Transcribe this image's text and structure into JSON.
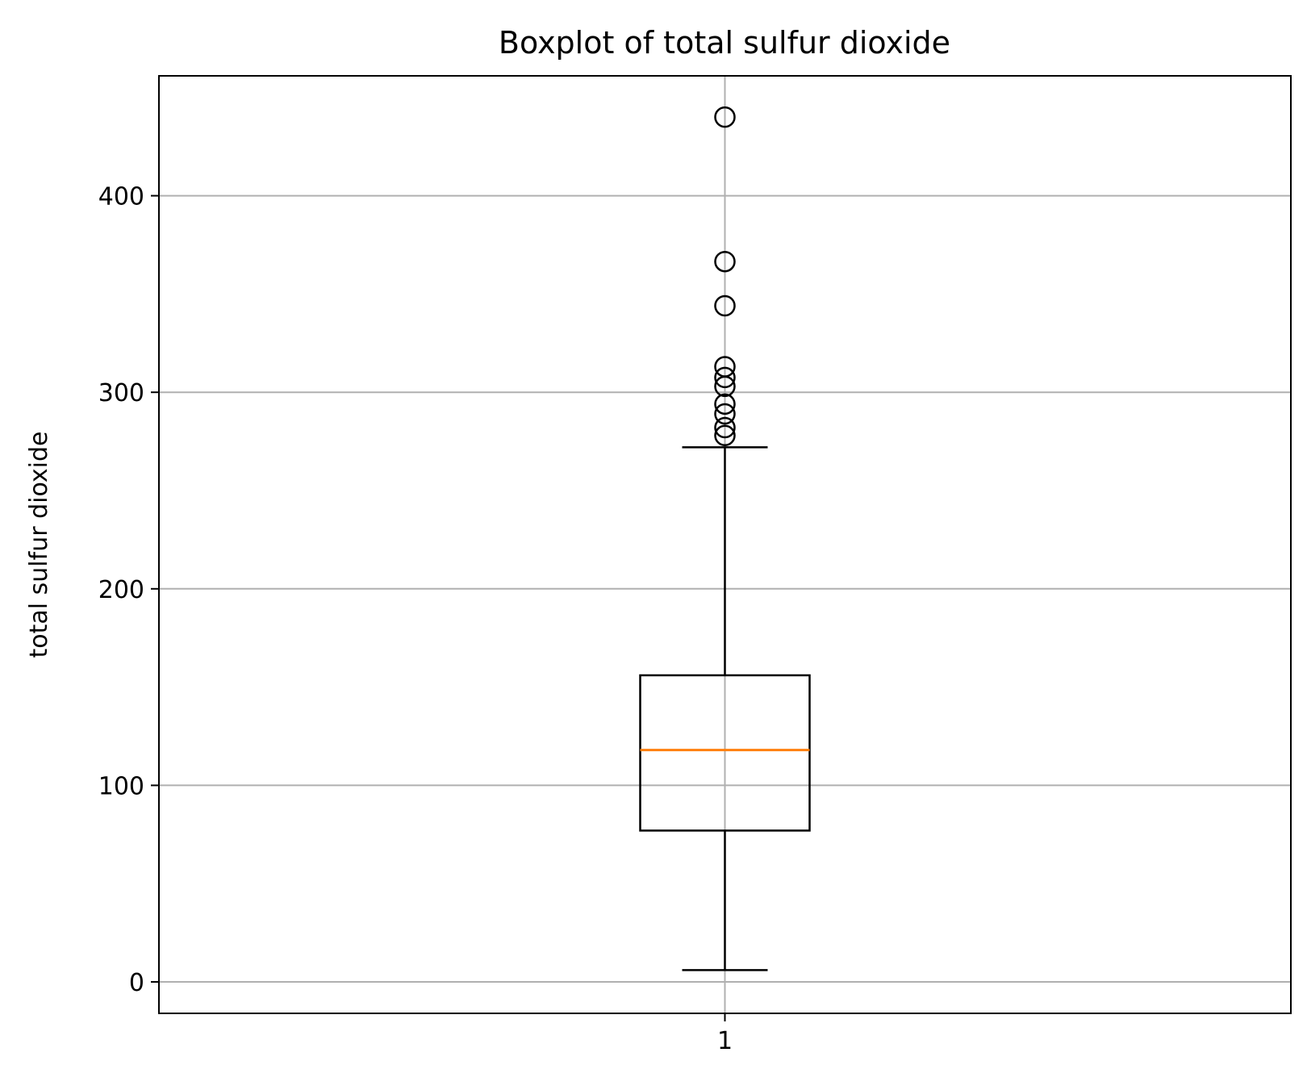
{
  "chart_data": {
    "type": "box",
    "title": "Boxplot of total sulfur dioxide",
    "xlabel": "",
    "ylabel": "total sulfur dioxide",
    "categories": [
      "1"
    ],
    "ylim": [
      -16,
      461
    ],
    "yticks": [
      0,
      100,
      200,
      300,
      400
    ],
    "grid": true,
    "box": {
      "whisker_low": 6,
      "q1": 77,
      "median": 118,
      "q3": 156,
      "whisker_high": 272
    },
    "outliers": [
      440,
      366.5,
      344,
      313,
      307.5,
      303,
      294,
      289,
      282,
      278
    ],
    "colors": {
      "median": "#ff7f0e",
      "box": "#000000",
      "grid": "#b0b0b0"
    }
  }
}
